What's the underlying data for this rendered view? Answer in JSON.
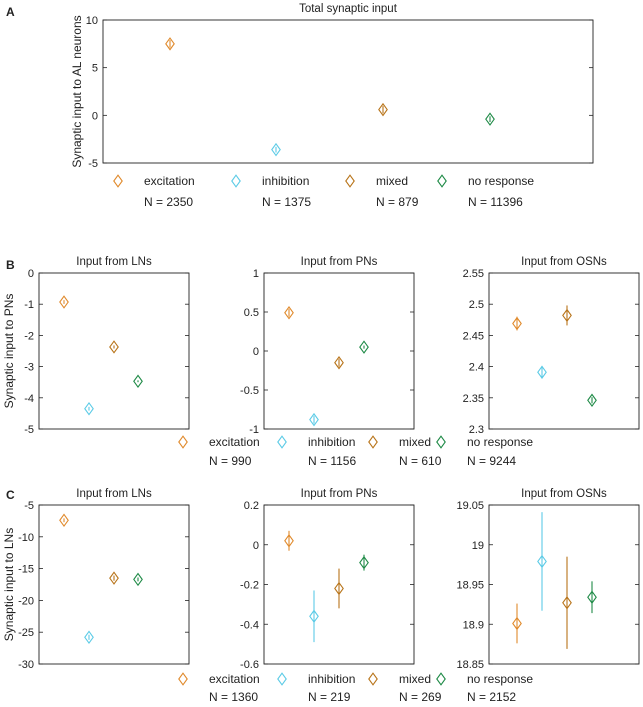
{
  "panel_labels": [
    "A",
    "B",
    "C"
  ],
  "category_names": [
    "excitation",
    "inhibition",
    "mixed",
    "no response"
  ],
  "colors": {
    "excitation": "#e08a2c",
    "inhibition": "#5ccbe6",
    "mixed": "#b8741a",
    "no_response": "#1e8a46"
  },
  "legends": {
    "A": [
      "N = 2350",
      "N = 1375",
      "N = 879",
      "N = 11396"
    ],
    "B": [
      "N = 990",
      "N = 1156",
      "N = 610",
      "N = 9244"
    ],
    "C": [
      "N = 1360",
      "N = 219",
      "N = 269",
      "N = 2152"
    ]
  },
  "chart_data": [
    {
      "id": "A",
      "type": "scatter",
      "title": "Total synaptic input",
      "xlabel": "",
      "ylabel": "Synaptic input to AL neurons",
      "ylim": [
        -5,
        10
      ],
      "yticks": [
        -5,
        0,
        5,
        10
      ],
      "categories": [
        "excitation",
        "inhibition",
        "mixed",
        "no response"
      ],
      "values": [
        7.5,
        -3.6,
        0.6,
        -0.4
      ],
      "errors": [
        0.4,
        0.3,
        0.4,
        0.3
      ]
    },
    {
      "id": "B1",
      "type": "scatter",
      "title": "Input from LNs",
      "xlabel": "",
      "ylabel": "Synaptic input to PNs",
      "ylim": [
        -5,
        0
      ],
      "yticks": [
        -5,
        -4,
        -3,
        -2,
        -1,
        0
      ],
      "categories": [
        "excitation",
        "inhibition",
        "mixed",
        "no response"
      ],
      "values": [
        -0.93,
        -4.35,
        -2.37,
        -3.47
      ],
      "errors": [
        0.06,
        0.06,
        0.05,
        0.03
      ]
    },
    {
      "id": "B2",
      "type": "scatter",
      "title": "Input from PNs",
      "xlabel": "",
      "ylabel": "",
      "ylim": [
        -1,
        1
      ],
      "yticks": [
        -1,
        -0.5,
        0,
        0.5,
        1
      ],
      "categories": [
        "excitation",
        "inhibition",
        "mixed",
        "no response"
      ],
      "values": [
        0.49,
        -0.88,
        -0.15,
        0.05
      ],
      "errors": [
        0.05,
        0.05,
        0.05,
        0.02
      ]
    },
    {
      "id": "B3",
      "type": "scatter",
      "title": "Input from OSNs",
      "xlabel": "",
      "ylabel": "",
      "ylim": [
        2.3,
        2.55
      ],
      "yticks": [
        2.3,
        2.35,
        2.4,
        2.45,
        2.5,
        2.55
      ],
      "categories": [
        "excitation",
        "inhibition",
        "mixed",
        "no response"
      ],
      "values": [
        2.469,
        2.391,
        2.482,
        2.346
      ],
      "errors": [
        0.011,
        0.01,
        0.016,
        0.005
      ]
    },
    {
      "id": "C1",
      "type": "scatter",
      "title": "Input from LNs",
      "xlabel": "",
      "ylabel": "Synaptic input to LNs",
      "ylim": [
        -30,
        -5
      ],
      "yticks": [
        -30,
        -25,
        -20,
        -15,
        -10,
        -5
      ],
      "categories": [
        "excitation",
        "inhibition",
        "mixed",
        "no response"
      ],
      "values": [
        -7.4,
        -25.8,
        -16.5,
        -16.7
      ],
      "errors": [
        0.3,
        0.4,
        0.4,
        0.3
      ]
    },
    {
      "id": "C2",
      "type": "scatter",
      "title": "Input from PNs",
      "xlabel": "",
      "ylabel": "",
      "ylim": [
        -0.6,
        0.2
      ],
      "yticks": [
        -0.6,
        -0.4,
        -0.2,
        0,
        0.2
      ],
      "categories": [
        "excitation",
        "inhibition",
        "mixed",
        "no response"
      ],
      "values": [
        0.02,
        -0.36,
        -0.22,
        -0.09
      ],
      "errors": [
        0.05,
        0.13,
        0.1,
        0.04
      ]
    },
    {
      "id": "C3",
      "type": "scatter",
      "title": "Input from OSNs",
      "xlabel": "",
      "ylabel": "",
      "ylim": [
        18.85,
        19.05
      ],
      "yticks": [
        18.85,
        18.9,
        18.95,
        19,
        19.05
      ],
      "categories": [
        "excitation",
        "inhibition",
        "mixed",
        "no response"
      ],
      "values": [
        18.901,
        18.979,
        18.927,
        18.934
      ],
      "errors": [
        0.025,
        0.062,
        0.058,
        0.02
      ]
    }
  ]
}
